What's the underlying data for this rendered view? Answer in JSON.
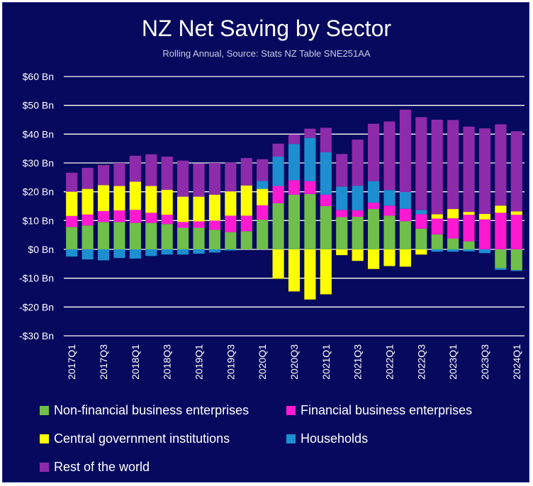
{
  "title": "NZ Net Saving by Sector",
  "subtitle": "Rolling Annual, Source: Stats NZ Table SNE251AA",
  "colors": {
    "background": "#07095e",
    "gridline": "#ffffff",
    "text": "#ffffff"
  },
  "chart_data": {
    "type": "bar",
    "stacked": true,
    "ylim": [
      -30,
      60
    ],
    "yticks": [
      -30,
      -20,
      -10,
      0,
      10,
      20,
      30,
      40,
      50,
      60
    ],
    "ytick_labels": [
      "-$30 Bn",
      "-$20 Bn",
      "-$10 Bn",
      "$0 Bn",
      "$10 Bn",
      "$20 Bn",
      "$30 Bn",
      "$40 Bn",
      "$50 Bn",
      "$60 Bn"
    ],
    "grid": true,
    "legend_position": "bottom",
    "categories": [
      "2017Q1",
      "2017Q2",
      "2017Q3",
      "2017Q4",
      "2018Q1",
      "2018Q2",
      "2018Q3",
      "2018Q4",
      "2019Q1",
      "2019Q2",
      "2019Q3",
      "2019Q4",
      "2020Q1",
      "2020Q2",
      "2020Q3",
      "2020Q4",
      "2021Q1",
      "2021Q2",
      "2021Q3",
      "2021Q4",
      "2022Q1",
      "2022Q2",
      "2022Q3",
      "2022Q4",
      "2023Q1",
      "2023Q2",
      "2023Q3",
      "2023Q4",
      "2024Q1"
    ],
    "xtick_labels": [
      "2017Q1",
      "",
      "2017Q3",
      "",
      "2018Q1",
      "",
      "2018Q3",
      "",
      "2019Q1",
      "",
      "2019Q3",
      "",
      "2020Q1",
      "",
      "2020Q3",
      "",
      "2021Q1",
      "",
      "2021Q3",
      "",
      "2022Q1",
      "",
      "2022Q3",
      "",
      "2023Q1",
      "",
      "2023Q3",
      "",
      "2024Q1"
    ],
    "series": [
      {
        "name": "Non-financial business enterprises",
        "color": "#6fbf4a",
        "values": [
          7.8,
          8.3,
          9.5,
          9.5,
          9.2,
          9.2,
          8.8,
          7.5,
          7.5,
          6.8,
          6.0,
          6.3,
          10.3,
          16.0,
          19.0,
          19.2,
          15.0,
          11.2,
          11.3,
          14.0,
          11.7,
          9.8,
          7.2,
          5.2,
          3.8,
          2.8,
          0.0,
          -6.5,
          -7.2
        ]
      },
      {
        "name": "Financial business enterprises",
        "color": "#ff1ad2",
        "values": [
          3.8,
          3.8,
          3.8,
          4.0,
          4.5,
          3.5,
          3.2,
          2.0,
          2.2,
          3.2,
          5.7,
          5.4,
          5.0,
          6.0,
          5.0,
          4.5,
          4.0,
          2.5,
          2.3,
          2.2,
          3.5,
          4.3,
          5.0,
          5.5,
          7.0,
          9.2,
          10.4,
          12.7,
          12.0
        ]
      },
      {
        "name": "Central government institutions",
        "color": "#ffff00",
        "values": [
          8.4,
          8.9,
          9.0,
          8.5,
          9.8,
          9.3,
          8.7,
          8.8,
          8.6,
          9.0,
          8.4,
          10.5,
          5.7,
          -10.2,
          -14.6,
          -17.4,
          -15.6,
          -2.0,
          -4.0,
          -6.8,
          -5.8,
          -6.0,
          -1.8,
          1.5,
          3.2,
          1.0,
          1.9,
          2.5,
          1.2
        ]
      },
      {
        "name": "Households",
        "color": "#1d8fd0",
        "values": [
          -2.5,
          -3.5,
          -3.8,
          -3.0,
          -3.2,
          -2.3,
          -1.8,
          -1.8,
          -1.5,
          -1.1,
          -0.4,
          0.0,
          2.8,
          10.2,
          12.6,
          15.0,
          14.7,
          8.1,
          8.5,
          7.5,
          5.4,
          5.8,
          1.5,
          -0.8,
          -0.8,
          -0.7,
          -1.3,
          -0.6,
          -0.3
        ]
      },
      {
        "name": "Rest of the world",
        "color": "#8e2bab",
        "values": [
          6.6,
          7.3,
          7.0,
          8.0,
          9.0,
          11.0,
          11.5,
          12.5,
          11.5,
          11.0,
          10.0,
          9.5,
          7.5,
          4.5,
          3.3,
          3.2,
          8.5,
          11.3,
          16.0,
          19.9,
          23.8,
          28.6,
          32.2,
          32.8,
          30.9,
          29.6,
          29.7,
          28.2,
          27.8
        ]
      }
    ]
  }
}
